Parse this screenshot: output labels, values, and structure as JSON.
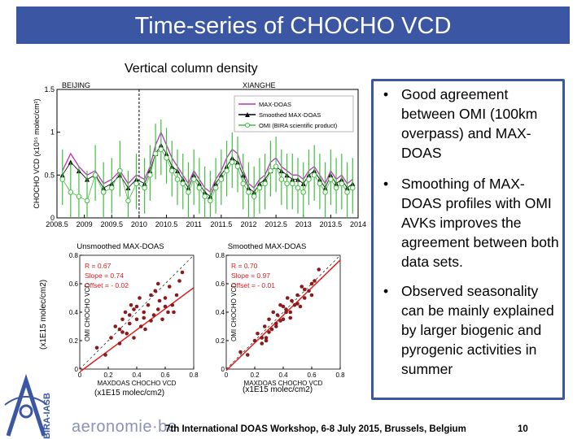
{
  "slide": {
    "title": "Time-series of CHOCHO VCD",
    "subtitle": "Vertical column density",
    "footer": "7th International DOAS Workshop, 6-8 July 2015, Brussels, Belgium",
    "page_number": "10",
    "logo_text": "aeronomie·be",
    "vertical_brand": "BIRA-IASB",
    "left_unit": "(x1E15 molec/cm2)",
    "bottom_unit_1": "(x1E15 molec/cm2)",
    "bottom_unit_2": "(x1E15 molec/cm2)",
    "colors": {
      "title_bg": "#3b57a3",
      "maxdoas": "#c030c0",
      "smoothed": "#000000",
      "omi": "#40c040",
      "scatter_point": "#8b1a1a",
      "fit_line": "#e02020"
    }
  },
  "bullets": [
    {
      "text": "Good agreement between OMI (100km overpass) and MAX-DOAS"
    },
    {
      "text": "Smoothing of MAX-DOAS profiles with OMI AVKs improves the agreement between both data sets."
    },
    {
      "text": "Observed seasonality can be mainly explained by larger biogenic and pyrogenic activities in summer"
    }
  ],
  "chart_data": [
    {
      "type": "line",
      "title": "",
      "site_labels": [
        "BEIJING",
        "XIANGHE"
      ],
      "xlabel": "",
      "ylabel": "CHOCHO VCD (x10¹⁵ molec/cm²)",
      "xlim": [
        2008.5,
        2014
      ],
      "ylim": [
        0,
        1.5
      ],
      "xticks": [
        "2008.5",
        "2009",
        "2009.5",
        "2010",
        "2010.5",
        "2011",
        "2011.5",
        "2012",
        "2012.5",
        "2013",
        "2013.5",
        "2014"
      ],
      "yticks": [
        "0",
        "0.5",
        "1",
        "1.5"
      ],
      "legend": [
        "MAX-DOAS",
        "Smoothed MAX-DOAS",
        "OMI (BIRA scientific product)"
      ],
      "legend_position": "top-right",
      "series": [
        {
          "name": "MAX-DOAS",
          "x": [
            2008.6,
            2008.75,
            2008.9,
            2009.05,
            2009.2,
            2009.35,
            2009.5,
            2009.65,
            2009.8,
            2009.95,
            2010.1,
            2010.2,
            2010.3,
            2010.4,
            2010.5,
            2010.6,
            2010.7,
            2010.8,
            2010.9,
            2011.0,
            2011.1,
            2011.2,
            2011.3,
            2011.4,
            2011.5,
            2011.6,
            2011.7,
            2011.8,
            2011.9,
            2012.0,
            2012.1,
            2012.2,
            2012.3,
            2012.4,
            2012.5,
            2012.6,
            2012.7,
            2012.8,
            2012.9,
            2013.0,
            2013.1,
            2013.2,
            2013.3,
            2013.4,
            2013.5,
            2013.6,
            2013.7,
            2013.8,
            2013.9
          ],
          "y": [
            0.55,
            0.75,
            0.6,
            0.5,
            0.55,
            0.4,
            0.45,
            0.55,
            0.4,
            0.5,
            0.45,
            0.6,
            0.85,
            1.0,
            0.85,
            0.7,
            0.6,
            0.5,
            0.4,
            0.55,
            0.45,
            0.35,
            0.3,
            0.45,
            0.55,
            0.7,
            0.8,
            0.75,
            0.55,
            0.4,
            0.35,
            0.45,
            0.5,
            0.65,
            0.7,
            0.6,
            0.55,
            0.5,
            0.5,
            0.45,
            0.55,
            0.6,
            0.5,
            0.4,
            0.55,
            0.45,
            0.5,
            0.4,
            0.45
          ]
        },
        {
          "name": "Smoothed MAX-DOAS",
          "x": [
            2008.6,
            2008.75,
            2008.9,
            2009.05,
            2009.2,
            2009.35,
            2009.5,
            2009.65,
            2009.8,
            2009.95,
            2010.1,
            2010.2,
            2010.3,
            2010.4,
            2010.5,
            2010.6,
            2010.7,
            2010.8,
            2010.9,
            2011.0,
            2011.1,
            2011.2,
            2011.3,
            2011.4,
            2011.5,
            2011.6,
            2011.7,
            2011.8,
            2011.9,
            2012.0,
            2012.1,
            2012.2,
            2012.3,
            2012.4,
            2012.5,
            2012.6,
            2012.7,
            2012.8,
            2012.9,
            2013.0,
            2013.1,
            2013.2,
            2013.3,
            2013.4,
            2013.5,
            2013.6,
            2013.7,
            2013.8,
            2013.9
          ],
          "y": [
            0.5,
            0.65,
            0.55,
            0.45,
            0.5,
            0.35,
            0.4,
            0.5,
            0.35,
            0.45,
            0.4,
            0.55,
            0.75,
            0.85,
            0.75,
            0.6,
            0.55,
            0.45,
            0.35,
            0.5,
            0.4,
            0.3,
            0.25,
            0.4,
            0.5,
            0.6,
            0.7,
            0.65,
            0.5,
            0.35,
            0.3,
            0.4,
            0.45,
            0.55,
            0.6,
            0.55,
            0.5,
            0.45,
            0.45,
            0.4,
            0.5,
            0.55,
            0.45,
            0.35,
            0.5,
            0.4,
            0.45,
            0.35,
            0.4
          ]
        },
        {
          "name": "OMI (BIRA scientific product)",
          "x": [
            2008.6,
            2008.75,
            2008.9,
            2009.05,
            2009.2,
            2009.35,
            2009.5,
            2009.65,
            2009.8,
            2009.95,
            2010.1,
            2010.2,
            2010.3,
            2010.4,
            2010.5,
            2010.6,
            2010.7,
            2010.8,
            2010.9,
            2011.0,
            2011.1,
            2011.2,
            2011.3,
            2011.4,
            2011.5,
            2011.6,
            2011.7,
            2011.8,
            2011.9,
            2012.0,
            2012.1,
            2012.2,
            2012.3,
            2012.4,
            2012.5,
            2012.6,
            2012.7,
            2012.8,
            2012.9,
            2013.0,
            2013.1,
            2013.2,
            2013.3,
            2013.4,
            2013.5,
            2013.6,
            2013.7,
            2013.8,
            2013.9
          ],
          "y": [
            0.45,
            0.3,
            0.25,
            0.2,
            0.5,
            0.3,
            0.35,
            0.55,
            0.2,
            0.4,
            0.35,
            0.5,
            0.75,
            0.8,
            0.7,
            0.55,
            0.45,
            0.4,
            0.3,
            0.45,
            0.35,
            0.25,
            0.2,
            0.35,
            0.45,
            0.55,
            0.65,
            0.6,
            0.4,
            0.3,
            0.25,
            0.35,
            0.4,
            0.55,
            0.6,
            0.45,
            0.4,
            0.4,
            0.35,
            0.3,
            0.45,
            0.5,
            0.4,
            0.3,
            0.45,
            0.35,
            0.4,
            0.3,
            0.35
          ]
        }
      ]
    },
    {
      "type": "scatter",
      "title": "Unsmoothed MAX-DOAS",
      "xlabel": "MAXDOAS CHOCHO VCD",
      "ylabel": "OMI CHOCHO VCD",
      "xlim": [
        0,
        0.8
      ],
      "ylim": [
        0,
        0.8
      ],
      "xticks": [
        "0",
        "0.2",
        "0.4",
        "0.6",
        "0.8"
      ],
      "yticks": [
        "0",
        "0.2",
        "0.4",
        "0.6",
        "0.8"
      ],
      "stats": [
        "R = 0.67",
        "Slope = 0.74",
        "Offset = - 0.02"
      ],
      "fit": {
        "slope": 0.74,
        "offset": -0.02
      },
      "points": {
        "x": [
          0.12,
          0.18,
          0.22,
          0.25,
          0.28,
          0.3,
          0.32,
          0.33,
          0.35,
          0.36,
          0.38,
          0.4,
          0.42,
          0.43,
          0.45,
          0.46,
          0.48,
          0.5,
          0.52,
          0.53,
          0.55,
          0.56,
          0.58,
          0.6,
          0.62,
          0.63,
          0.65,
          0.68,
          0.7,
          0.72,
          0.35,
          0.4,
          0.28,
          0.5,
          0.45,
          0.6,
          0.38,
          0.55,
          0.66,
          0.3
        ],
        "y": [
          0.15,
          0.1,
          0.22,
          0.3,
          0.18,
          0.35,
          0.4,
          0.25,
          0.38,
          0.45,
          0.42,
          0.35,
          0.5,
          0.3,
          0.4,
          0.28,
          0.45,
          0.52,
          0.38,
          0.55,
          0.42,
          0.48,
          0.35,
          0.5,
          0.4,
          0.58,
          0.45,
          0.52,
          0.62,
          0.68,
          0.32,
          0.44,
          0.28,
          0.34,
          0.36,
          0.44,
          0.22,
          0.6,
          0.4,
          0.26
        ]
      }
    },
    {
      "type": "scatter",
      "title": "Smoothed MAX-DOAS",
      "xlabel": "MAXDOAS CHOCHO VCD",
      "ylabel": "OMI CHOCHO VCD",
      "xlim": [
        0,
        0.8
      ],
      "ylim": [
        0,
        0.8
      ],
      "xticks": [
        "0",
        "0.2",
        "0.4",
        "0.6",
        "0.8"
      ],
      "yticks": [
        "0",
        "0.2",
        "0.4",
        "0.6",
        "0.8"
      ],
      "stats": [
        "R = 0.70",
        "Slope = 0.97",
        "Offset = - 0.01"
      ],
      "fit": {
        "slope": 0.97,
        "offset": -0.01
      },
      "points": {
        "x": [
          0.1,
          0.15,
          0.2,
          0.22,
          0.25,
          0.27,
          0.28,
          0.3,
          0.32,
          0.33,
          0.35,
          0.36,
          0.38,
          0.4,
          0.42,
          0.43,
          0.45,
          0.46,
          0.48,
          0.5,
          0.52,
          0.53,
          0.55,
          0.58,
          0.6,
          0.62,
          0.65,
          0.3,
          0.35,
          0.4,
          0.25,
          0.45,
          0.38,
          0.5,
          0.28,
          0.42,
          0.55,
          0.6
        ],
        "y": [
          0.12,
          0.1,
          0.2,
          0.25,
          0.18,
          0.3,
          0.22,
          0.35,
          0.28,
          0.4,
          0.32,
          0.38,
          0.45,
          0.35,
          0.42,
          0.5,
          0.4,
          0.48,
          0.45,
          0.52,
          0.44,
          0.58,
          0.5,
          0.55,
          0.6,
          0.62,
          0.7,
          0.26,
          0.3,
          0.44,
          0.22,
          0.36,
          0.34,
          0.46,
          0.2,
          0.4,
          0.56,
          0.52
        ]
      }
    }
  ]
}
